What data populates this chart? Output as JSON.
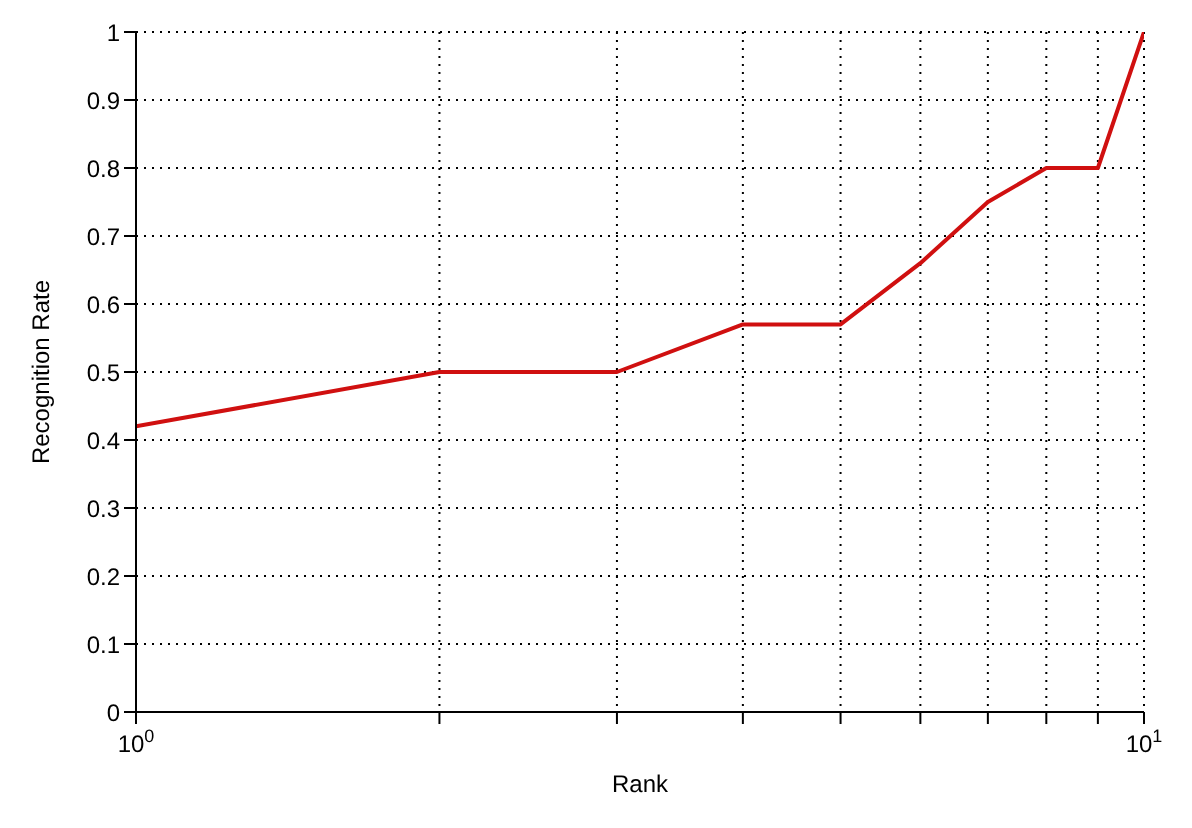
{
  "chart_data": {
    "type": "line",
    "xlabel": "Rank",
    "ylabel": "Recognition Rate",
    "log": "x",
    "grid": true,
    "marker": "none",
    "line_style": "solid",
    "x": [
      1,
      2,
      3,
      4,
      5,
      6,
      7,
      8,
      9,
      10
    ],
    "series": [
      {
        "color": "#d01010",
        "values": [
          0.42,
          0.5,
          0.5,
          0.57,
          0.57,
          0.66,
          0.75,
          0.8,
          0.8,
          1.0
        ]
      }
    ],
    "xlim": [
      1,
      10
    ],
    "xticks": [
      {
        "value": 1,
        "label": "10$^{0}$"
      },
      {
        "value": 2,
        "label": null
      },
      {
        "value": 3,
        "label": null
      },
      {
        "value": 4,
        "label": null
      },
      {
        "value": 5,
        "label": null
      },
      {
        "value": 6,
        "label": null
      },
      {
        "value": 7,
        "label": null
      },
      {
        "value": 8,
        "label": null
      },
      {
        "value": 9,
        "label": null
      },
      {
        "value": 10,
        "label": "10$^{1}$"
      }
    ],
    "ylim": [
      0,
      1
    ],
    "yticks": [
      0,
      0.1,
      0.2,
      0.3,
      0.4,
      0.5,
      0.6,
      0.7,
      0.8,
      0.9,
      1
    ]
  }
}
